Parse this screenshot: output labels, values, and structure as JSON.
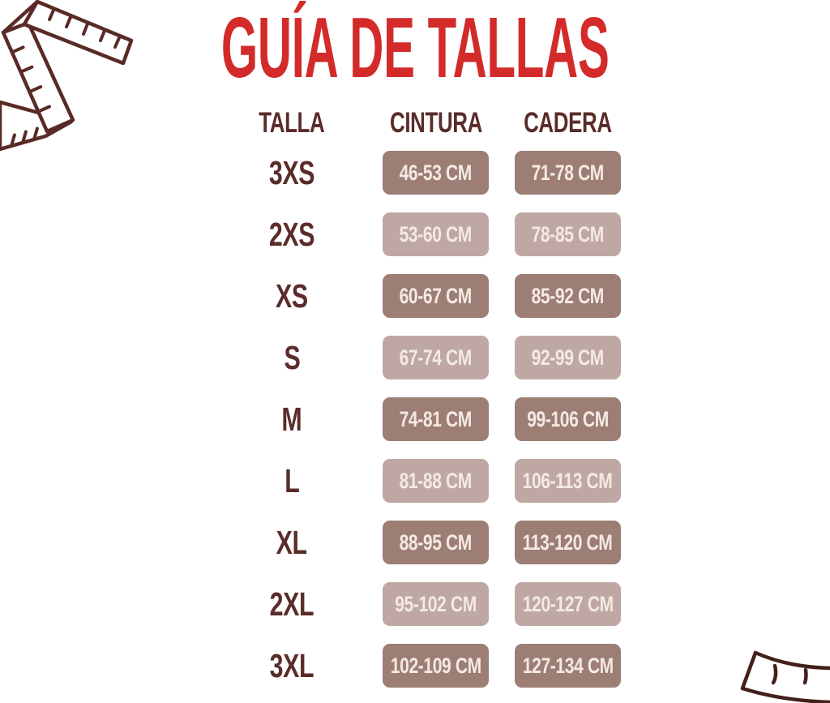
{
  "title": "GUÍA DE TALLAS",
  "chart_data": {
    "type": "table",
    "title": "GUÍA DE TALLAS",
    "columns": [
      "TALLA",
      "CINTURA",
      "CADERA"
    ],
    "rows": [
      [
        "3XS",
        "46-53 CM",
        "71-78 CM"
      ],
      [
        "2XS",
        "53-60 CM",
        "78-85 CM"
      ],
      [
        "XS",
        "60-67 CM",
        "85-92 CM"
      ],
      [
        "S",
        "67-74 CM",
        "92-99 CM"
      ],
      [
        "M",
        "74-81 CM",
        "99-106 CM"
      ],
      [
        "L",
        "81-88 CM",
        "106-113 CM"
      ],
      [
        "XL",
        "88-95 CM",
        "113-120 CM"
      ],
      [
        "2XL",
        "95-102 CM",
        "120-127 CM"
      ],
      [
        "3XL",
        "102-109 CM",
        "127-134 CM"
      ]
    ],
    "layout_hints": {
      "row_shading": "alternating, first row dark",
      "units": "centimeters"
    }
  },
  "colors": {
    "title_red": "#d32b2a",
    "header_brown": "#5a2c2a",
    "size_label": "#5a2c2a",
    "cell_dark": "#9d7e75",
    "cell_light": "#bfa8a3",
    "cell_text": "#f4eae3",
    "tape_stroke": "#5a2a26",
    "waistband_stroke": "#44201c"
  },
  "icons": {
    "top_left": "measuring-tape-icon",
    "bottom_right": "waistband-icon"
  }
}
